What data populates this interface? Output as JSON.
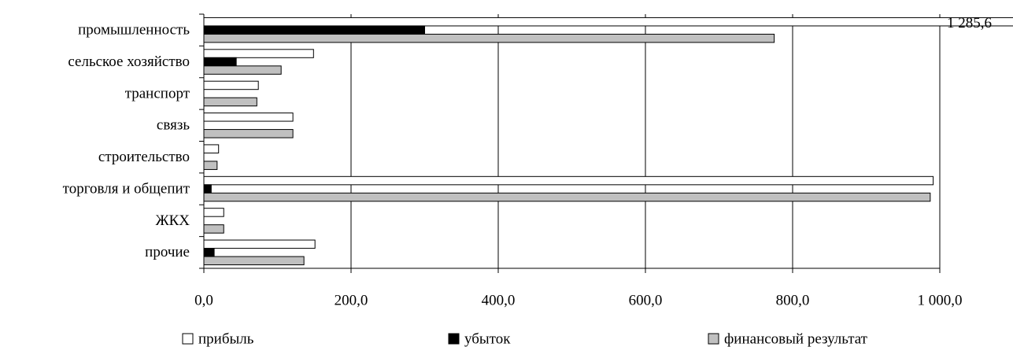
{
  "chart_data": {
    "type": "hbar",
    "categories": [
      "промышленность",
      "сельское хозяйство",
      "транспорт",
      "связь",
      "строительство",
      "торговля и общепит",
      "ЖКХ",
      "прочие"
    ],
    "series": [
      {
        "name": "прибыль",
        "color": "#ffffff",
        "values": [
          1285.6,
          149,
          74,
          121,
          20,
          991,
          27,
          151
        ],
        "value_labels": [
          "1 285,6",
          null,
          null,
          null,
          null,
          null,
          null,
          null
        ]
      },
      {
        "name": "убыток",
        "color": "#000000",
        "values": [
          300,
          44,
          0,
          0,
          0,
          10,
          0,
          14
        ]
      },
      {
        "name": "финансовый результат",
        "color": "#c0c0c0",
        "values": [
          775,
          105,
          72,
          121,
          18,
          987,
          27,
          136
        ]
      }
    ],
    "xlim": [
      0,
      1000
    ],
    "xticks": [
      {
        "value": 0,
        "label": "0,0"
      },
      {
        "value": 200,
        "label": "200,0"
      },
      {
        "value": 400,
        "label": "400,0"
      },
      {
        "value": 600,
        "label": "600,0"
      },
      {
        "value": 800,
        "label": "800,0"
      },
      {
        "value": 1000,
        "label": "1 000,0"
      }
    ],
    "grid": true
  }
}
